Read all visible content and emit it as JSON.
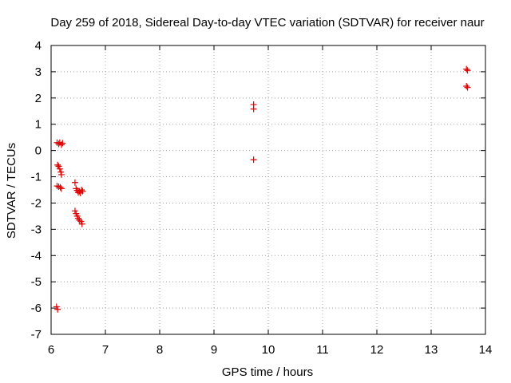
{
  "chart_data": {
    "type": "scatter",
    "title": "Day 259 of 2018, Sidereal Day-to-day VTEC variation (SDTVAR) for receiver naur",
    "xlabel": "GPS time / hours",
    "ylabel": "SDTVAR / TECUs",
    "xlim": [
      6,
      14
    ],
    "ylim": [
      -7,
      4
    ],
    "xticks": [
      6,
      7,
      8,
      9,
      10,
      11,
      12,
      13,
      14
    ],
    "yticks": [
      4,
      3,
      2,
      1,
      0,
      -1,
      -2,
      -3,
      -4,
      -5,
      -6,
      -7
    ],
    "grid": true,
    "marker": "+",
    "marker_color": "#e00000",
    "points": [
      [
        6.11,
        0.3
      ],
      [
        6.14,
        0.25
      ],
      [
        6.16,
        0.3
      ],
      [
        6.19,
        0.22
      ],
      [
        6.21,
        0.28
      ],
      [
        6.12,
        -0.55
      ],
      [
        6.14,
        -0.6
      ],
      [
        6.16,
        -0.7
      ],
      [
        6.18,
        -0.82
      ],
      [
        6.19,
        -0.92
      ],
      [
        6.11,
        -1.35
      ],
      [
        6.14,
        -1.38
      ],
      [
        6.17,
        -1.4
      ],
      [
        6.19,
        -1.45
      ],
      [
        6.44,
        -1.22
      ],
      [
        6.46,
        -1.45
      ],
      [
        6.48,
        -1.52
      ],
      [
        6.5,
        -1.6
      ],
      [
        6.52,
        -1.55
      ],
      [
        6.54,
        -1.62
      ],
      [
        6.56,
        -1.5
      ],
      [
        6.58,
        -1.55
      ],
      [
        6.44,
        -2.3
      ],
      [
        6.46,
        -2.4
      ],
      [
        6.48,
        -2.5
      ],
      [
        6.5,
        -2.58
      ],
      [
        6.52,
        -2.65
      ],
      [
        6.55,
        -2.7
      ],
      [
        6.57,
        -2.8
      ],
      [
        6.1,
        -5.95
      ],
      [
        6.12,
        -6.05
      ],
      [
        9.73,
        1.75
      ],
      [
        9.73,
        1.58
      ],
      [
        9.73,
        -0.35
      ],
      [
        13.65,
        3.1
      ],
      [
        13.67,
        3.05
      ],
      [
        13.65,
        2.45
      ],
      [
        13.67,
        2.4
      ]
    ]
  }
}
